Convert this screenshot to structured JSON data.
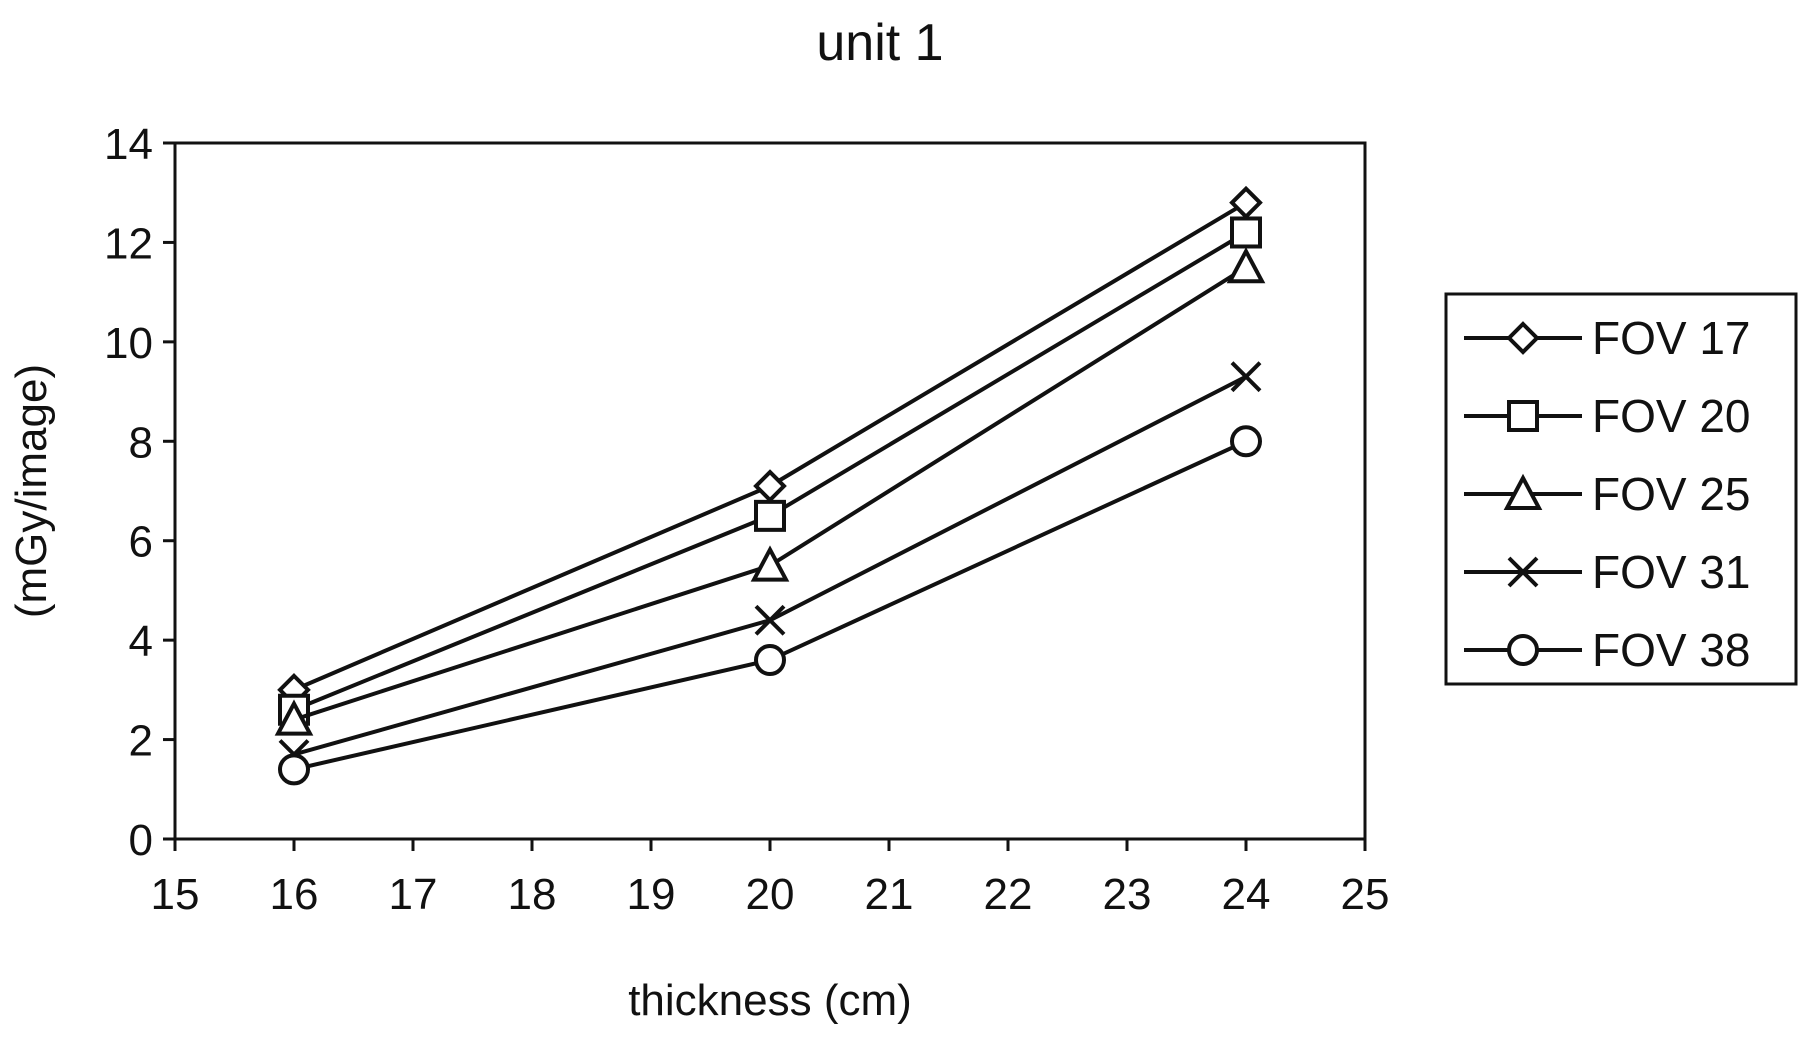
{
  "chart_data": {
    "type": "line",
    "title": "unit 1",
    "xlabel": "thickness (cm)",
    "ylabel": "(mGy/image)",
    "xlim": [
      15,
      25
    ],
    "ylim": [
      0,
      14
    ],
    "xticks": [
      15,
      16,
      17,
      18,
      19,
      20,
      21,
      22,
      23,
      24,
      25
    ],
    "yticks": [
      0,
      2,
      4,
      6,
      8,
      10,
      12,
      14
    ],
    "grid": false,
    "legend_position": "right",
    "x": [
      16,
      20,
      24
    ],
    "series": [
      {
        "name": "FOV 17",
        "marker": "diamond",
        "values": [
          3.0,
          7.1,
          12.8
        ]
      },
      {
        "name": "FOV 20",
        "marker": "square",
        "values": [
          2.6,
          6.5,
          12.2
        ]
      },
      {
        "name": "FOV 25",
        "marker": "triangle",
        "values": [
          2.4,
          5.5,
          11.5
        ]
      },
      {
        "name": "FOV 31",
        "marker": "x",
        "values": [
          1.7,
          4.4,
          9.3
        ]
      },
      {
        "name": "FOV 38",
        "marker": "circle",
        "values": [
          1.4,
          3.6,
          8.0
        ]
      }
    ]
  }
}
